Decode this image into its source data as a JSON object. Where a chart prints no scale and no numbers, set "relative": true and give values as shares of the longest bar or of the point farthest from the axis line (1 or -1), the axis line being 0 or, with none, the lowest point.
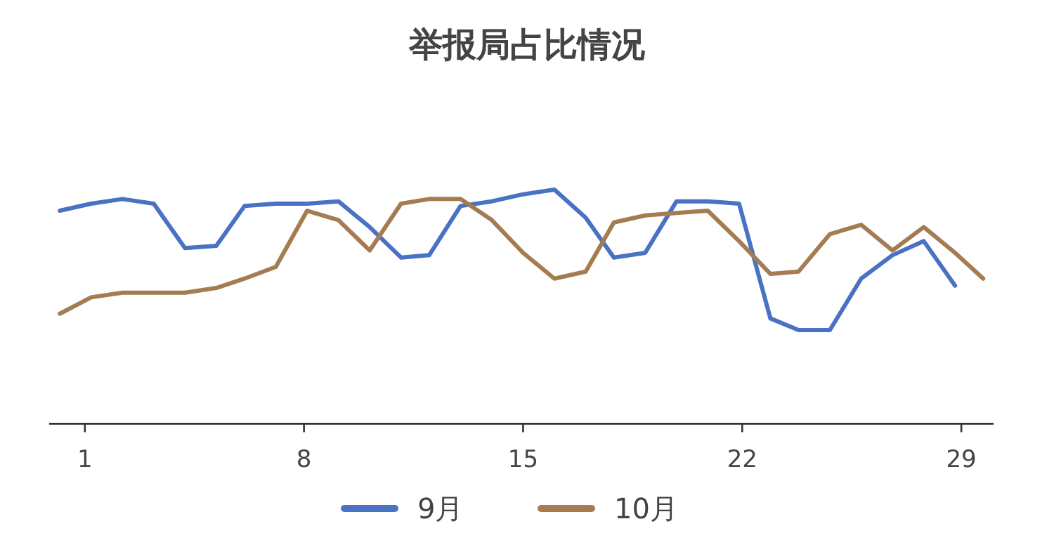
{
  "chart_data": {
    "type": "line",
    "title": "举报局占比情况",
    "relative": true,
    "legend": "bottom",
    "xlim": [
      -0.14,
      30.03
    ],
    "xticks": [
      1,
      8,
      15,
      22,
      29
    ],
    "series": [
      {
        "name": "9月",
        "color": "#4a72c4",
        "x": [
          0.2,
          1.2,
          2.2,
          3.2,
          4.2,
          5.2,
          6.1,
          7.1,
          8.1,
          9.1,
          10.1,
          11.1,
          12.0,
          13.0,
          14.0,
          15.0,
          16.0,
          17.0,
          17.9,
          18.9,
          19.9,
          20.9,
          21.9,
          22.9,
          23.8,
          24.8,
          25.8,
          26.8,
          27.8,
          28.8
        ],
        "values": [
          0.91,
          0.94,
          0.96,
          0.94,
          0.75,
          0.76,
          0.93,
          0.94,
          0.94,
          0.95,
          0.84,
          0.71,
          0.72,
          0.93,
          0.95,
          0.98,
          1,
          0.88,
          0.71,
          0.73,
          0.95,
          0.95,
          0.94,
          0.45,
          0.4,
          0.4,
          0.62,
          0.72,
          0.78,
          0.59
        ]
      },
      {
        "name": "10月",
        "color": "#a57c52",
        "x": [
          0.2,
          1.2,
          2.2,
          3.2,
          4.2,
          5.2,
          6.1,
          7.1,
          8.1,
          9.1,
          10.1,
          11.1,
          12.0,
          13.0,
          14.0,
          15.0,
          16.0,
          17.0,
          17.9,
          18.9,
          19.9,
          20.9,
          21.9,
          22.9,
          23.8,
          24.8,
          25.8,
          26.8,
          27.8,
          28.8,
          29.7
        ],
        "values": [
          0.47,
          0.54,
          0.56,
          0.56,
          0.56,
          0.58,
          0.62,
          0.67,
          0.91,
          0.87,
          0.74,
          0.94,
          0.96,
          0.96,
          0.87,
          0.73,
          0.62,
          0.65,
          0.86,
          0.89,
          0.9,
          0.91,
          0.78,
          0.64,
          0.65,
          0.81,
          0.85,
          0.74,
          0.84,
          0.73,
          0.62
        ]
      }
    ]
  }
}
